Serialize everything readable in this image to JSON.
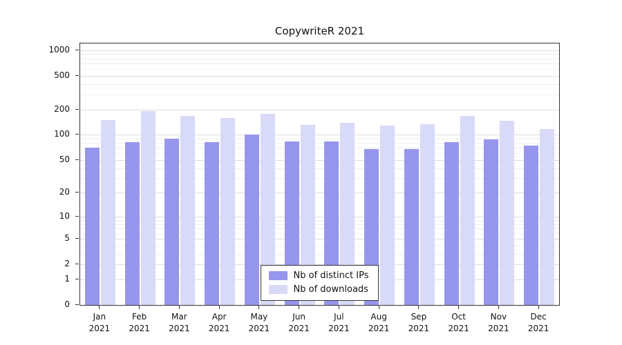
{
  "chart_data": {
    "type": "bar",
    "title": "CopywriteR 2021",
    "categories": [
      "Jan 2021",
      "Feb 2021",
      "Mar 2021",
      "Apr 2021",
      "May 2021",
      "Jun 2021",
      "Jul 2021",
      "Aug 2021",
      "Sep 2021",
      "Oct 2021",
      "Nov 2021",
      "Dec 2021"
    ],
    "series": [
      {
        "name": "Nb of distinct IPs",
        "color": "#9696ec",
        "values": [
          70,
          81,
          90,
          82,
          100,
          84,
          84,
          67,
          68,
          81,
          89,
          74
        ]
      },
      {
        "name": "Nb of downloads",
        "color": "#d9d9f8",
        "values": [
          150,
          190,
          167,
          157,
          176,
          132,
          138,
          128,
          134,
          168,
          146,
          118
        ]
      }
    ],
    "y_axis": {
      "scale": "log1p",
      "ticks": [
        0,
        1,
        2,
        5,
        10,
        20,
        50,
        100,
        200,
        500,
        1000
      ],
      "minor_gridlines": [
        3,
        4,
        6,
        7,
        8,
        9,
        30,
        40,
        60,
        70,
        80,
        90,
        300,
        400,
        600,
        700,
        800,
        900
      ],
      "ylim": [
        0,
        1200
      ]
    },
    "xlabel": "",
    "ylabel": "",
    "grid": true,
    "legend": {
      "position": "bottom-center-inside",
      "entries": [
        "Nb of distinct IPs",
        "Nb of downloads"
      ]
    }
  }
}
